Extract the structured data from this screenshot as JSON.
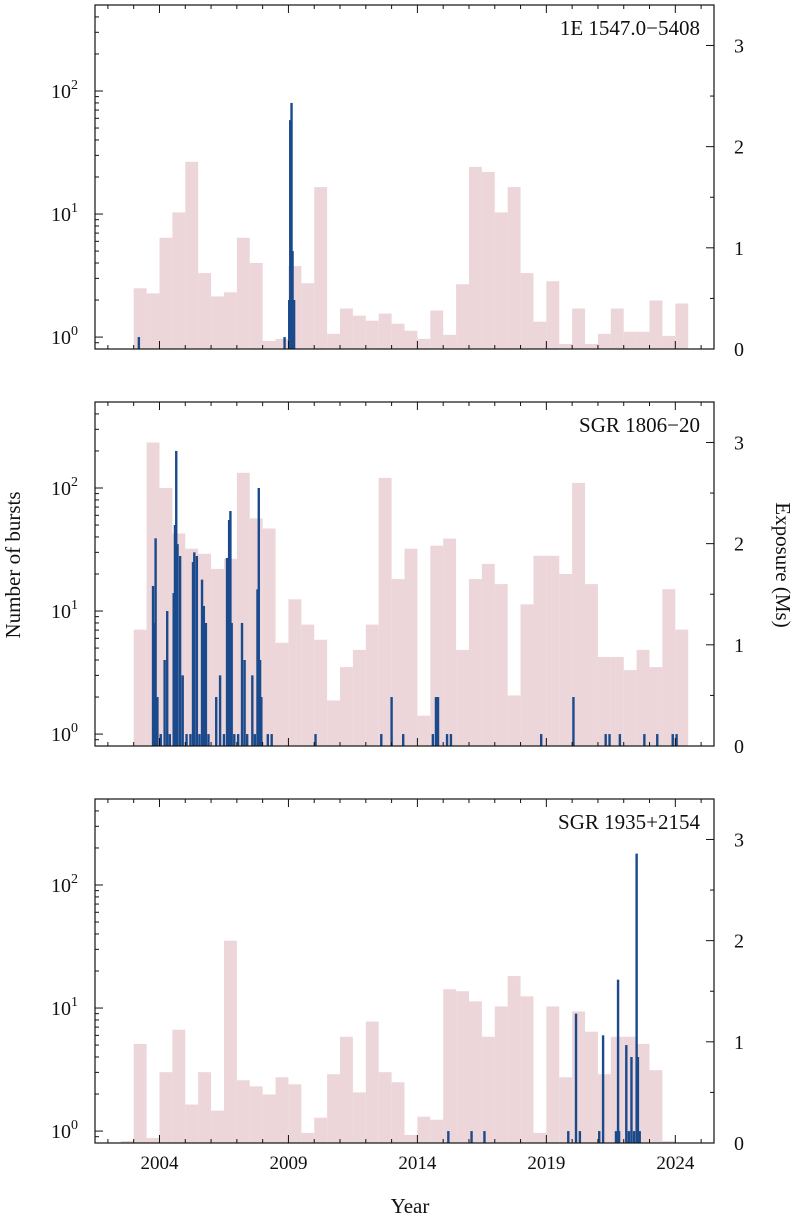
{
  "figure": {
    "xlabel": "Year",
    "left_ylabel": "Number of bursts",
    "right_ylabel": "Exposure (Ms)",
    "x_range": [
      2001.5,
      2025.5
    ],
    "x_ticks": [
      2004,
      2009,
      2014,
      2019,
      2024
    ],
    "x_tick_labels": [
      "2004",
      "2009",
      "2014",
      "2019",
      "2024"
    ],
    "left_yscale": "log",
    "left_ylim": [
      0.8,
      500
    ],
    "left_ticks": [
      {
        "value": 1,
        "base": "10",
        "exp": "0"
      },
      {
        "value": 10,
        "base": "10",
        "exp": "1"
      },
      {
        "value": 100,
        "base": "10",
        "exp": "2"
      }
    ],
    "right_ylim": [
      0,
      3.4
    ],
    "right_ticks": [
      0,
      1,
      2,
      3
    ],
    "right_tick_labels": [
      "0",
      "1",
      "2",
      "3"
    ],
    "colors": {
      "exposure": "#ecd6d9",
      "bursts": "#1b4a8c",
      "axes": "#111111"
    }
  },
  "chart_data": [
    {
      "type": "bar",
      "title": "1E 1547.0−5408",
      "exposure_bin_width": 0.5,
      "exposure": [
        {
          "start": 2003.0,
          "value": 0.6
        },
        {
          "start": 2003.5,
          "value": 0.55
        },
        {
          "start": 2004.0,
          "value": 1.1
        },
        {
          "start": 2004.5,
          "value": 1.35
        },
        {
          "start": 2005.0,
          "value": 1.85
        },
        {
          "start": 2005.5,
          "value": 0.75
        },
        {
          "start": 2006.0,
          "value": 0.52
        },
        {
          "start": 2006.5,
          "value": 0.56
        },
        {
          "start": 2007.0,
          "value": 1.1
        },
        {
          "start": 2007.5,
          "value": 0.85
        },
        {
          "start": 2008.0,
          "value": 0.08
        },
        {
          "start": 2008.5,
          "value": 0.1
        },
        {
          "start": 2009.0,
          "value": 0.82
        },
        {
          "start": 2009.5,
          "value": 0.65
        },
        {
          "start": 2010.0,
          "value": 1.6
        },
        {
          "start": 2010.5,
          "value": 0.15
        },
        {
          "start": 2011.0,
          "value": 0.4
        },
        {
          "start": 2011.5,
          "value": 0.33
        },
        {
          "start": 2012.0,
          "value": 0.28
        },
        {
          "start": 2012.5,
          "value": 0.35
        },
        {
          "start": 2013.0,
          "value": 0.25
        },
        {
          "start": 2013.5,
          "value": 0.18
        },
        {
          "start": 2014.0,
          "value": 0.1
        },
        {
          "start": 2014.5,
          "value": 0.38
        },
        {
          "start": 2015.0,
          "value": 0.14
        },
        {
          "start": 2015.5,
          "value": 0.64
        },
        {
          "start": 2016.0,
          "value": 1.8
        },
        {
          "start": 2016.5,
          "value": 1.75
        },
        {
          "start": 2017.0,
          "value": 1.35
        },
        {
          "start": 2017.5,
          "value": 1.6
        },
        {
          "start": 2018.0,
          "value": 0.75
        },
        {
          "start": 2018.5,
          "value": 0.27
        },
        {
          "start": 2019.0,
          "value": 0.67
        },
        {
          "start": 2019.5,
          "value": 0.05
        },
        {
          "start": 2020.0,
          "value": 0.4
        },
        {
          "start": 2020.5,
          "value": 0.05
        },
        {
          "start": 2021.0,
          "value": 0.15
        },
        {
          "start": 2021.5,
          "value": 0.4
        },
        {
          "start": 2022.0,
          "value": 0.17
        },
        {
          "start": 2022.5,
          "value": 0.17
        },
        {
          "start": 2023.0,
          "value": 0.48
        },
        {
          "start": 2023.5,
          "value": 0.13
        },
        {
          "start": 2024.0,
          "value": 0.45
        }
      ],
      "bursts": [
        {
          "x": 2003.2,
          "count": 1
        },
        {
          "x": 2008.85,
          "count": 1
        },
        {
          "x": 2009.03,
          "count": 2
        },
        {
          "x": 2009.07,
          "count": 58
        },
        {
          "x": 2009.12,
          "count": 80
        },
        {
          "x": 2009.16,
          "count": 5
        },
        {
          "x": 2009.22,
          "count": 2
        }
      ]
    },
    {
      "type": "bar",
      "title": "SGR 1806−20",
      "exposure_bin_width": 0.5,
      "exposure": [
        {
          "start": 2003.0,
          "value": 1.15
        },
        {
          "start": 2003.5,
          "value": 3.0
        },
        {
          "start": 2004.0,
          "value": 2.55
        },
        {
          "start": 2004.5,
          "value": 2.1
        },
        {
          "start": 2005.0,
          "value": 1.95
        },
        {
          "start": 2005.5,
          "value": 1.9
        },
        {
          "start": 2006.0,
          "value": 1.75
        },
        {
          "start": 2006.5,
          "value": 1.85
        },
        {
          "start": 2007.0,
          "value": 2.7
        },
        {
          "start": 2007.5,
          "value": 2.25
        },
        {
          "start": 2008.0,
          "value": 2.15
        },
        {
          "start": 2008.5,
          "value": 1.02
        },
        {
          "start": 2009.0,
          "value": 1.45
        },
        {
          "start": 2009.5,
          "value": 1.2
        },
        {
          "start": 2010.0,
          "value": 1.05
        },
        {
          "start": 2010.5,
          "value": 0.45
        },
        {
          "start": 2011.0,
          "value": 0.78
        },
        {
          "start": 2011.5,
          "value": 0.95
        },
        {
          "start": 2012.0,
          "value": 1.2
        },
        {
          "start": 2012.5,
          "value": 2.65
        },
        {
          "start": 2013.0,
          "value": 1.65
        },
        {
          "start": 2013.5,
          "value": 1.95
        },
        {
          "start": 2014.0,
          "value": 0.3
        },
        {
          "start": 2014.5,
          "value": 1.98
        },
        {
          "start": 2015.0,
          "value": 2.05
        },
        {
          "start": 2015.5,
          "value": 0.95
        },
        {
          "start": 2016.0,
          "value": 1.65
        },
        {
          "start": 2016.5,
          "value": 1.8
        },
        {
          "start": 2017.0,
          "value": 1.6
        },
        {
          "start": 2017.5,
          "value": 0.5
        },
        {
          "start": 2018.0,
          "value": 1.4
        },
        {
          "start": 2018.5,
          "value": 1.88
        },
        {
          "start": 2019.0,
          "value": 1.88
        },
        {
          "start": 2019.5,
          "value": 1.7
        },
        {
          "start": 2020.0,
          "value": 2.6
        },
        {
          "start": 2020.5,
          "value": 1.6
        },
        {
          "start": 2021.0,
          "value": 0.88
        },
        {
          "start": 2021.5,
          "value": 0.88
        },
        {
          "start": 2022.0,
          "value": 0.75
        },
        {
          "start": 2022.5,
          "value": 0.95
        },
        {
          "start": 2023.0,
          "value": 0.78
        },
        {
          "start": 2023.5,
          "value": 1.55
        },
        {
          "start": 2024.0,
          "value": 1.15
        }
      ],
      "bursts": [
        {
          "x": 2003.75,
          "count": 16
        },
        {
          "x": 2003.8,
          "count": 8
        },
        {
          "x": 2003.85,
          "count": 39
        },
        {
          "x": 2003.92,
          "count": 2
        },
        {
          "x": 2004.05,
          "count": 1
        },
        {
          "x": 2004.2,
          "count": 4
        },
        {
          "x": 2004.3,
          "count": 10
        },
        {
          "x": 2004.4,
          "count": 1
        },
        {
          "x": 2004.55,
          "count": 14
        },
        {
          "x": 2004.6,
          "count": 50
        },
        {
          "x": 2004.65,
          "count": 200
        },
        {
          "x": 2004.7,
          "count": 35
        },
        {
          "x": 2004.8,
          "count": 28
        },
        {
          "x": 2004.9,
          "count": 3
        },
        {
          "x": 2005.05,
          "count": 1
        },
        {
          "x": 2005.2,
          "count": 1
        },
        {
          "x": 2005.3,
          "count": 25
        },
        {
          "x": 2005.35,
          "count": 30
        },
        {
          "x": 2005.45,
          "count": 28
        },
        {
          "x": 2005.55,
          "count": 1
        },
        {
          "x": 2005.65,
          "count": 18
        },
        {
          "x": 2005.72,
          "count": 11
        },
        {
          "x": 2005.8,
          "count": 8
        },
        {
          "x": 2005.9,
          "count": 1
        },
        {
          "x": 2006.2,
          "count": 2
        },
        {
          "x": 2006.35,
          "count": 3
        },
        {
          "x": 2006.5,
          "count": 1
        },
        {
          "x": 2006.62,
          "count": 27
        },
        {
          "x": 2006.7,
          "count": 55
        },
        {
          "x": 2006.75,
          "count": 65
        },
        {
          "x": 2006.8,
          "count": 8
        },
        {
          "x": 2006.9,
          "count": 1
        },
        {
          "x": 2007.05,
          "count": 1
        },
        {
          "x": 2007.2,
          "count": 8
        },
        {
          "x": 2007.3,
          "count": 4
        },
        {
          "x": 2007.4,
          "count": 1
        },
        {
          "x": 2007.6,
          "count": 3
        },
        {
          "x": 2007.7,
          "count": 1
        },
        {
          "x": 2007.8,
          "count": 15
        },
        {
          "x": 2007.85,
          "count": 100
        },
        {
          "x": 2007.9,
          "count": 4
        },
        {
          "x": 2007.95,
          "count": 2
        },
        {
          "x": 2008.2,
          "count": 1
        },
        {
          "x": 2008.35,
          "count": 1
        },
        {
          "x": 2010.05,
          "count": 1
        },
        {
          "x": 2012.6,
          "count": 1
        },
        {
          "x": 2013.0,
          "count": 2
        },
        {
          "x": 2013.45,
          "count": 1
        },
        {
          "x": 2014.6,
          "count": 1
        },
        {
          "x": 2014.72,
          "count": 2
        },
        {
          "x": 2014.8,
          "count": 2
        },
        {
          "x": 2015.15,
          "count": 1
        },
        {
          "x": 2015.3,
          "count": 1
        },
        {
          "x": 2018.8,
          "count": 1
        },
        {
          "x": 2020.05,
          "count": 2
        },
        {
          "x": 2021.3,
          "count": 1
        },
        {
          "x": 2021.45,
          "count": 1
        },
        {
          "x": 2021.85,
          "count": 1
        },
        {
          "x": 2022.8,
          "count": 1
        },
        {
          "x": 2023.3,
          "count": 1
        },
        {
          "x": 2023.9,
          "count": 1
        },
        {
          "x": 2024.05,
          "count": 1
        }
      ]
    },
    {
      "type": "bar",
      "title": "SGR 1935+2154",
      "exposure_bin_width": 0.5,
      "exposure": [
        {
          "start": 2002.5,
          "value": 0.02
        },
        {
          "start": 2003.0,
          "value": 0.98
        },
        {
          "start": 2003.5,
          "value": 0.05
        },
        {
          "start": 2004.0,
          "value": 0.7
        },
        {
          "start": 2004.5,
          "value": 1.12
        },
        {
          "start": 2005.0,
          "value": 0.38
        },
        {
          "start": 2005.5,
          "value": 0.7
        },
        {
          "start": 2006.0,
          "value": 0.32
        },
        {
          "start": 2006.5,
          "value": 2.0
        },
        {
          "start": 2007.0,
          "value": 0.62
        },
        {
          "start": 2007.5,
          "value": 0.56
        },
        {
          "start": 2008.0,
          "value": 0.48
        },
        {
          "start": 2008.5,
          "value": 0.65
        },
        {
          "start": 2009.0,
          "value": 0.58
        },
        {
          "start": 2009.5,
          "value": 0.1
        },
        {
          "start": 2010.0,
          "value": 0.25
        },
        {
          "start": 2010.5,
          "value": 0.68
        },
        {
          "start": 2011.0,
          "value": 1.05
        },
        {
          "start": 2011.5,
          "value": 0.5
        },
        {
          "start": 2012.0,
          "value": 1.2
        },
        {
          "start": 2012.5,
          "value": 0.7
        },
        {
          "start": 2013.0,
          "value": 0.6
        },
        {
          "start": 2013.5,
          "value": 0.08
        },
        {
          "start": 2014.0,
          "value": 0.26
        },
        {
          "start": 2014.5,
          "value": 0.23
        },
        {
          "start": 2015.0,
          "value": 1.52
        },
        {
          "start": 2015.5,
          "value": 1.5
        },
        {
          "start": 2016.0,
          "value": 1.4
        },
        {
          "start": 2016.5,
          "value": 1.05
        },
        {
          "start": 2017.0,
          "value": 1.35
        },
        {
          "start": 2017.5,
          "value": 1.65
        },
        {
          "start": 2018.0,
          "value": 1.45
        },
        {
          "start": 2018.5,
          "value": 0.1
        },
        {
          "start": 2019.0,
          "value": 1.35
        },
        {
          "start": 2019.5,
          "value": 0.65
        },
        {
          "start": 2020.0,
          "value": 1.3
        },
        {
          "start": 2020.5,
          "value": 1.1
        },
        {
          "start": 2021.0,
          "value": 0.68
        },
        {
          "start": 2021.5,
          "value": 1.05
        },
        {
          "start": 2022.0,
          "value": 1.05
        },
        {
          "start": 2022.5,
          "value": 0.98
        },
        {
          "start": 2023.0,
          "value": 0.72
        },
        {
          "start": 2023.5,
          "value": 0.02
        }
      ],
      "bursts": [
        {
          "x": 2015.2,
          "count": 1
        },
        {
          "x": 2016.1,
          "count": 1
        },
        {
          "x": 2016.6,
          "count": 1
        },
        {
          "x": 2019.85,
          "count": 1
        },
        {
          "x": 2020.15,
          "count": 9
        },
        {
          "x": 2020.3,
          "count": 1
        },
        {
          "x": 2021.05,
          "count": 1
        },
        {
          "x": 2021.2,
          "count": 6
        },
        {
          "x": 2021.7,
          "count": 1
        },
        {
          "x": 2021.78,
          "count": 17
        },
        {
          "x": 2021.82,
          "count": 1
        },
        {
          "x": 2022.1,
          "count": 5
        },
        {
          "x": 2022.2,
          "count": 1
        },
        {
          "x": 2022.3,
          "count": 4
        },
        {
          "x": 2022.4,
          "count": 1
        },
        {
          "x": 2022.5,
          "count": 180
        },
        {
          "x": 2022.55,
          "count": 4
        },
        {
          "x": 2022.62,
          "count": 1
        }
      ]
    }
  ]
}
